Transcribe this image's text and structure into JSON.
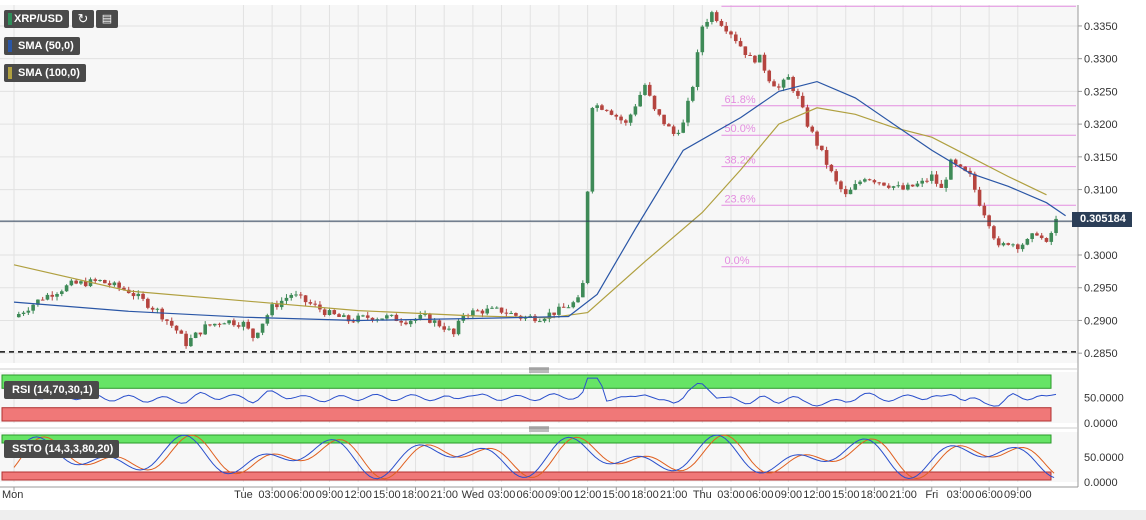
{
  "header": {
    "symbol": "XRP/USD",
    "refresh_icon": "refresh-icon",
    "calendar_icon": "calendar-icon",
    "sma50_label": "SMA (50,0)",
    "sma50_color": "#2a56a6",
    "sma100_label": "SMA (100,0)",
    "sma100_color": "#b0a040"
  },
  "price_tag": "0.305184",
  "rsi_label": "RSI (14,70,30,1)",
  "ssto_label": "SSTO (14,3,3,80,20)",
  "colors": {
    "up": "#3e8a57",
    "down": "#b5443f",
    "sma50": "#2a56a6",
    "sma100": "#b0a040",
    "fib": "#e48ee0",
    "osc_line": "#2a4fcc",
    "osc_signal": "#e06020",
    "zone_green": "#66e466",
    "zone_red": "#f07878"
  },
  "chart_data": {
    "type": "candlestick",
    "pair": "XRP/USD",
    "x_labels": [
      "Mon",
      "Tue",
      "03:00",
      "06:00",
      "09:00",
      "12:00",
      "15:00",
      "18:00",
      "21:00",
      "Wed",
      "03:00",
      "06:00",
      "09:00",
      "12:00",
      "15:00",
      "18:00",
      "21:00",
      "Thu",
      "03:00",
      "06:00",
      "09:00",
      "12:00",
      "15:00",
      "18:00",
      "21:00",
      "Fri",
      "03:00",
      "06:00",
      "09:00"
    ],
    "x_hours": [
      0,
      24,
      27,
      30,
      33,
      36,
      39,
      42,
      45,
      48,
      51,
      54,
      57,
      60,
      63,
      66,
      69,
      72,
      75,
      78,
      81,
      84,
      87,
      90,
      93,
      96,
      99,
      102,
      105
    ],
    "y_ticks": [
      "0.3350",
      "0.3300",
      "0.3250",
      "0.3200",
      "0.3150",
      "0.3100",
      "0.3050",
      "0.3000",
      "0.2950",
      "0.2900",
      "0.2850"
    ],
    "y_range": [
      0.2835,
      0.3382
    ],
    "last_price": 0.305184,
    "support_level": 0.2852,
    "fibonacci": {
      "start_hour": 74,
      "end_hour": 108,
      "levels": [
        {
          "label": "",
          "value": 0.338
        },
        {
          "label": "61.8%",
          "value": 0.3228
        },
        {
          "label": "50.0%",
          "value": 0.3183
        },
        {
          "label": "38.2%",
          "value": 0.3135
        },
        {
          "label": "23.6%",
          "value": 0.3076
        },
        {
          "label": "0.0%",
          "value": 0.2982
        }
      ]
    },
    "price_path": [
      [
        0,
        0.2905
      ],
      [
        3,
        0.2935
      ],
      [
        6,
        0.2955
      ],
      [
        9,
        0.296
      ],
      [
        12,
        0.2945
      ],
      [
        15,
        0.2915
      ],
      [
        17,
        0.2885
      ],
      [
        18,
        0.2865
      ],
      [
        20,
        0.289
      ],
      [
        22,
        0.29
      ],
      [
        24,
        0.2895
      ],
      [
        25,
        0.2875
      ],
      [
        27,
        0.292
      ],
      [
        29,
        0.294
      ],
      [
        31,
        0.2925
      ],
      [
        33,
        0.291
      ],
      [
        35,
        0.29
      ],
      [
        37,
        0.2905
      ],
      [
        39,
        0.2905
      ],
      [
        41,
        0.29
      ],
      [
        43,
        0.2905
      ],
      [
        45,
        0.289
      ],
      [
        46,
        0.2878
      ],
      [
        47,
        0.291
      ],
      [
        49,
        0.2915
      ],
      [
        51,
        0.2915
      ],
      [
        53,
        0.2905
      ],
      [
        55,
        0.2905
      ],
      [
        57,
        0.2915
      ],
      [
        59,
        0.293
      ],
      [
        59.5,
        0.2955
      ],
      [
        60,
        0.31
      ],
      [
        60.5,
        0.323
      ],
      [
        62,
        0.3225
      ],
      [
        64,
        0.32
      ],
      [
        66,
        0.326
      ],
      [
        67,
        0.322
      ],
      [
        69,
        0.3185
      ],
      [
        70,
        0.32
      ],
      [
        71,
        0.326
      ],
      [
        72,
        0.335
      ],
      [
        73,
        0.337
      ],
      [
        74,
        0.3355
      ],
      [
        75,
        0.334
      ],
      [
        76,
        0.332
      ],
      [
        77,
        0.33
      ],
      [
        78,
        0.33
      ],
      [
        79,
        0.327
      ],
      [
        80,
        0.3255
      ],
      [
        81,
        0.327
      ],
      [
        82,
        0.324
      ],
      [
        83,
        0.32
      ],
      [
        84,
        0.317
      ],
      [
        85,
        0.314
      ],
      [
        86,
        0.311
      ],
      [
        87,
        0.309
      ],
      [
        89,
        0.312
      ],
      [
        91,
        0.311
      ],
      [
        93,
        0.31
      ],
      [
        95,
        0.311
      ],
      [
        96,
        0.312
      ],
      [
        97,
        0.31
      ],
      [
        98,
        0.314
      ],
      [
        99,
        0.313
      ],
      [
        100,
        0.312
      ],
      [
        101,
        0.308
      ],
      [
        102,
        0.305
      ],
      [
        103,
        0.301
      ],
      [
        104,
        0.302
      ],
      [
        105,
        0.3015
      ],
      [
        106,
        0.302
      ],
      [
        107,
        0.3035
      ],
      [
        108,
        0.3015
      ],
      [
        109,
        0.3052
      ]
    ],
    "sma50": [
      [
        0,
        0.2928
      ],
      [
        12,
        0.2914
      ],
      [
        24,
        0.2905
      ],
      [
        36,
        0.29
      ],
      [
        48,
        0.2903
      ],
      [
        58,
        0.2906
      ],
      [
        61,
        0.294
      ],
      [
        65,
        0.304
      ],
      [
        70,
        0.316
      ],
      [
        76,
        0.321
      ],
      [
        80,
        0.325
      ],
      [
        84,
        0.3265
      ],
      [
        88,
        0.324
      ],
      [
        92,
        0.32
      ],
      [
        96,
        0.316
      ],
      [
        100,
        0.3125
      ],
      [
        104,
        0.3105
      ],
      [
        108,
        0.308
      ],
      [
        110,
        0.306
      ]
    ],
    "sma100": [
      [
        0,
        0.2985
      ],
      [
        12,
        0.2945
      ],
      [
        24,
        0.293
      ],
      [
        36,
        0.2915
      ],
      [
        48,
        0.2907
      ],
      [
        56,
        0.2904
      ],
      [
        60,
        0.2912
      ],
      [
        66,
        0.299
      ],
      [
        72,
        0.3065
      ],
      [
        76,
        0.313
      ],
      [
        80,
        0.32
      ],
      [
        84,
        0.3225
      ],
      [
        88,
        0.3215
      ],
      [
        92,
        0.3195
      ],
      [
        96,
        0.318
      ],
      [
        100,
        0.315
      ],
      [
        104,
        0.312
      ],
      [
        108,
        0.3092
      ]
    ],
    "rsi": {
      "overbought": 70,
      "oversold": 30,
      "tick_labels": [
        "50.0000",
        "0.0000"
      ]
    },
    "ssto": {
      "overbought": 80,
      "oversold": 20,
      "tick_labels": [
        "50.0000",
        "0.0000"
      ]
    }
  }
}
